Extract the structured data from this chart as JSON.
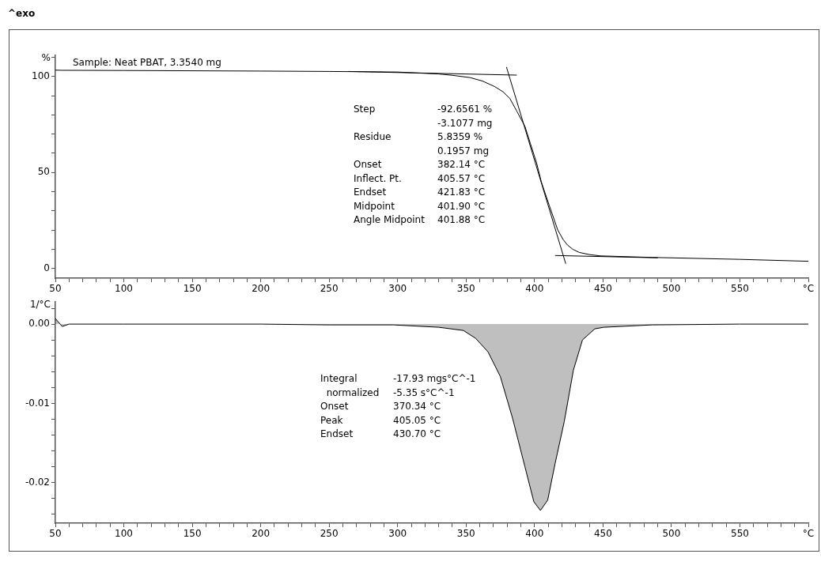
{
  "chart_data": [
    {
      "type": "line",
      "title": "^exo",
      "ylabel": "%",
      "xlim": [
        50,
        600
      ],
      "ylim": [
        -5,
        111
      ],
      "xticks": [
        50,
        {
          "value": 60,
          "label": null
        },
        {
          "value": 70,
          "label": null
        },
        {
          "value": 80,
          "label": null
        },
        {
          "value": 90,
          "label": null
        },
        100,
        {
          "value": 110,
          "label": null
        },
        {
          "value": 120,
          "label": null
        },
        {
          "value": 130,
          "label": null
        },
        {
          "value": 140,
          "label": null
        },
        150,
        {
          "value": 160,
          "label": null
        },
        {
          "value": 170,
          "label": null
        },
        {
          "value": 180,
          "label": null
        },
        {
          "value": 190,
          "label": null
        },
        200,
        {
          "value": 210,
          "label": null
        },
        {
          "value": 220,
          "label": null
        },
        {
          "value": 230,
          "label": null
        },
        {
          "value": 240,
          "label": null
        },
        250,
        {
          "value": 260,
          "label": null
        },
        {
          "value": 270,
          "label": null
        },
        {
          "value": 280,
          "label": null
        },
        {
          "value": 290,
          "label": null
        },
        300,
        {
          "value": 310,
          "label": null
        },
        {
          "value": 320,
          "label": null
        },
        {
          "value": 330,
          "label": null
        },
        {
          "value": 340,
          "label": null
        },
        350,
        {
          "value": 360,
          "label": null
        },
        {
          "value": 370,
          "label": null
        },
        {
          "value": 380,
          "label": null
        },
        {
          "value": 390,
          "label": null
        },
        400,
        {
          "value": 410,
          "label": null
        },
        {
          "value": 420,
          "label": null
        },
        {
          "value": 430,
          "label": null
        },
        {
          "value": 440,
          "label": null
        },
        450,
        {
          "value": 460,
          "label": null
        },
        {
          "value": 470,
          "label": null
        },
        {
          "value": 480,
          "label": null
        },
        {
          "value": 490,
          "label": null
        },
        500,
        {
          "value": 510,
          "label": null
        },
        {
          "value": 520,
          "label": null
        },
        {
          "value": 530,
          "label": null
        },
        {
          "value": 540,
          "label": null
        },
        550,
        {
          "value": 560,
          "label": null
        },
        {
          "value": 570,
          "label": null
        },
        {
          "value": 580,
          "label": null
        },
        {
          "value": 590,
          "label": null
        },
        {
          "value": 600,
          "label": "°C"
        }
      ],
      "yticks": [
        0,
        {
          "value": 10,
          "label": null
        },
        {
          "value": 20,
          "label": null
        },
        {
          "value": 30,
          "label": null
        },
        {
          "value": 40,
          "label": null
        },
        50,
        {
          "value": 60,
          "label": null
        },
        {
          "value": 70,
          "label": null
        },
        {
          "value": 80,
          "label": null
        },
        {
          "value": 90,
          "label": null
        },
        100,
        {
          "value": 110,
          "label": null
        }
      ],
      "series": [
        {
          "color": "#000000",
          "x": [
            50,
            55,
            100,
            200,
            250,
            300,
            330,
            340,
            353,
            362,
            371,
            377,
            382,
            387,
            393,
            397,
            401.5,
            405,
            410.7,
            417,
            421,
            424,
            428,
            432.7,
            440,
            448,
            486,
            550,
            600
          ],
          "values": [
            103.3,
            103.2,
            103.1,
            102.8,
            102.6,
            102.3,
            101.3,
            100.6,
            99.4,
            97.6,
            94.7,
            92,
            88.5,
            82,
            74,
            65,
            55,
            45,
            33,
            20,
            15,
            12.3,
            10,
            8.4,
            7.3,
            6.6,
            5.8,
            4.8,
            3.8
          ]
        },
        {
          "color": "#000000",
          "x": [
            264,
            387
          ],
          "values": [
            102.6,
            100.7
          ]
        },
        {
          "color": "#000000",
          "x": [
            379.5,
            422.8
          ],
          "values": [
            104.9,
            2.5
          ]
        },
        {
          "color": "#000000",
          "x": [
            415,
            490
          ],
          "values": [
            6.8,
            5.6
          ]
        }
      ],
      "annotations": [
        "Sample: Neat PBAT, 3.3540 mg",
        "Step\t-92.6561 %",
        "\t-3.1077 mg",
        "Residue\t5.8359 %",
        "\t0.1957 mg",
        "Onset\t382.14 °C",
        "Inflect. Pt.\t405.57 °C",
        "Endset\t421.83 °C",
        "Midpoint\t401.90 °C",
        "Angle Midpoint\t401.88 °C"
      ]
    },
    {
      "type": "area",
      "ylabel": "1/°C",
      "xlim": [
        50,
        600
      ],
      "ylim": [
        -0.0251,
        0.0028
      ],
      "xticks": [
        50,
        {
          "value": 60,
          "label": null
        },
        {
          "value": 70,
          "label": null
        },
        {
          "value": 80,
          "label": null
        },
        {
          "value": 90,
          "label": null
        },
        100,
        {
          "value": 110,
          "label": null
        },
        {
          "value": 120,
          "label": null
        },
        {
          "value": 130,
          "label": null
        },
        {
          "value": 140,
          "label": null
        },
        150,
        {
          "value": 160,
          "label": null
        },
        {
          "value": 170,
          "label": null
        },
        {
          "value": 180,
          "label": null
        },
        {
          "value": 190,
          "label": null
        },
        200,
        {
          "value": 210,
          "label": null
        },
        {
          "value": 220,
          "label": null
        },
        {
          "value": 230,
          "label": null
        },
        {
          "value": 240,
          "label": null
        },
        250,
        {
          "value": 260,
          "label": null
        },
        {
          "value": 270,
          "label": null
        },
        {
          "value": 280,
          "label": null
        },
        {
          "value": 290,
          "label": null
        },
        300,
        {
          "value": 310,
          "label": null
        },
        {
          "value": 320,
          "label": null
        },
        {
          "value": 330,
          "label": null
        },
        {
          "value": 340,
          "label": null
        },
        350,
        {
          "value": 360,
          "label": null
        },
        {
          "value": 370,
          "label": null
        },
        {
          "value": 380,
          "label": null
        },
        {
          "value": 390,
          "label": null
        },
        400,
        {
          "value": 410,
          "label": null
        },
        {
          "value": 420,
          "label": null
        },
        {
          "value": 430,
          "label": null
        },
        {
          "value": 440,
          "label": null
        },
        450,
        {
          "value": 460,
          "label": null
        },
        {
          "value": 470,
          "label": null
        },
        {
          "value": 480,
          "label": null
        },
        {
          "value": 490,
          "label": null
        },
        500,
        {
          "value": 510,
          "label": null
        },
        {
          "value": 520,
          "label": null
        },
        {
          "value": 530,
          "label": null
        },
        {
          "value": 540,
          "label": null
        },
        550,
        {
          "value": 560,
          "label": null
        },
        {
          "value": 570,
          "label": null
        },
        {
          "value": 580,
          "label": null
        },
        {
          "value": 590,
          "label": null
        },
        {
          "value": 600,
          "label": "°C"
        }
      ],
      "yticks": [
        {
          "value": 0.002,
          "label": null
        },
        {
          "value": 0,
          "label": "0.00"
        },
        {
          "value": -0.002,
          "label": null
        },
        {
          "value": -0.004,
          "label": null
        },
        {
          "value": -0.006,
          "label": null
        },
        {
          "value": -0.008,
          "label": null
        },
        {
          "value": -0.01,
          "label": "-0.01"
        },
        {
          "value": -0.012,
          "label": null
        },
        {
          "value": -0.014,
          "label": null
        },
        {
          "value": -0.016,
          "label": null
        },
        {
          "value": -0.018,
          "label": null
        },
        {
          "value": -0.02,
          "label": "-0.02"
        },
        {
          "value": -0.022,
          "label": null
        },
        {
          "value": -0.024,
          "label": null
        }
      ],
      "series": [
        {
          "color": "#000000",
          "x": [
            50,
            52,
            55,
            60,
            100,
            200,
            250,
            297,
            330,
            348,
            357,
            366,
            375,
            384,
            393,
            399.5,
            404.3,
            409.6,
            415,
            421.7,
            428.4,
            435,
            444,
            450.6,
            486,
            550,
            600
          ],
          "values": [
            0.0007,
            0.0003,
            -0.0003,
            0,
            0,
            0,
            -0.0001,
            -0.0001,
            -0.0004,
            -0.0008,
            -0.0018,
            -0.0035,
            -0.0066,
            -0.0119,
            -0.018,
            -0.0224,
            -0.0235,
            -0.0222,
            -0.0176,
            -0.0123,
            -0.0058,
            -0.002,
            -0.0006,
            -0.0004,
            -0.0001,
            0,
            0
          ]
        }
      ],
      "annotations": [
        "Integral\t-17.93 mgs°C^-1",
        "  normalized\t-5.35 s°C^-1",
        "Onset\t370.34 °C",
        "Peak\t405.05 °C",
        "Endset\t430.70 °C"
      ]
    }
  ]
}
